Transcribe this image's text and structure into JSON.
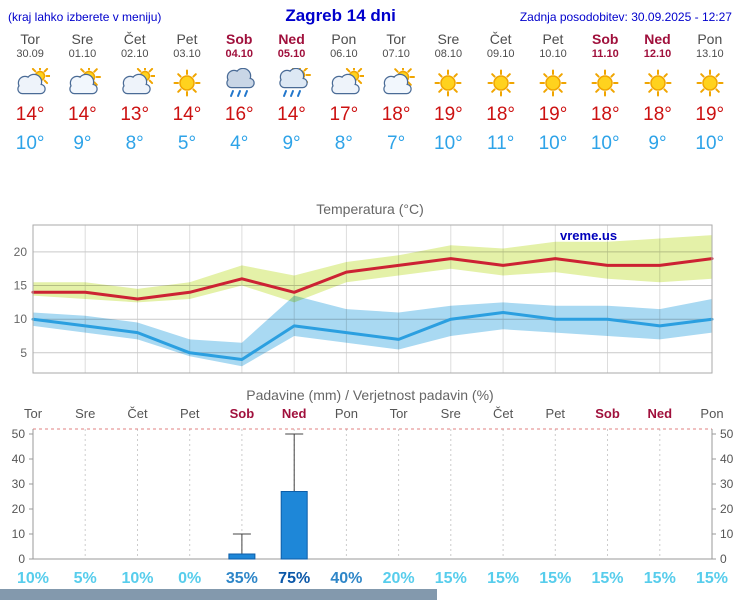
{
  "header": {
    "left": "(kraj lahko izberete v meniju)",
    "title": "Zagreb 14 dni",
    "updated": "Zadnja posodobitev: 30.09.2025 - 12:27"
  },
  "days": [
    {
      "name": "Tor",
      "date": "30.09",
      "weekend": false,
      "icon": "mostly-cloudy",
      "tmax": "14°",
      "tmin": "10°"
    },
    {
      "name": "Sre",
      "date": "01.10",
      "weekend": false,
      "icon": "partly-sunny",
      "tmax": "14°",
      "tmin": "9°"
    },
    {
      "name": "Čet",
      "date": "02.10",
      "weekend": false,
      "icon": "mostly-cloudy",
      "tmax": "13°",
      "tmin": "8°"
    },
    {
      "name": "Pet",
      "date": "03.10",
      "weekend": false,
      "icon": "sunny",
      "tmax": "14°",
      "tmin": "5°"
    },
    {
      "name": "Sob",
      "date": "04.10",
      "weekend": true,
      "icon": "rain",
      "tmax": "16°",
      "tmin": "4°"
    },
    {
      "name": "Ned",
      "date": "05.10",
      "weekend": true,
      "icon": "sun-shower",
      "tmax": "14°",
      "tmin": "9°"
    },
    {
      "name": "Pon",
      "date": "06.10",
      "weekend": false,
      "icon": "mostly-cloudy",
      "tmax": "17°",
      "tmin": "8°"
    },
    {
      "name": "Tor",
      "date": "07.10",
      "weekend": false,
      "icon": "partly-sunny",
      "tmax": "18°",
      "tmin": "7°"
    },
    {
      "name": "Sre",
      "date": "08.10",
      "weekend": false,
      "icon": "sunny",
      "tmax": "19°",
      "tmin": "10°"
    },
    {
      "name": "Čet",
      "date": "09.10",
      "weekend": false,
      "icon": "sunny",
      "tmax": "18°",
      "tmin": "11°"
    },
    {
      "name": "Pet",
      "date": "10.10",
      "weekend": false,
      "icon": "sunny",
      "tmax": "19°",
      "tmin": "10°"
    },
    {
      "name": "Sob",
      "date": "11.10",
      "weekend": true,
      "icon": "sunny",
      "tmax": "18°",
      "tmin": "10°"
    },
    {
      "name": "Ned",
      "date": "12.10",
      "weekend": true,
      "icon": "sunny",
      "tmax": "18°",
      "tmin": "9°"
    },
    {
      "name": "Pon",
      "date": "13.10",
      "weekend": false,
      "icon": "sunny",
      "tmax": "19°",
      "tmin": "10°"
    }
  ],
  "colors": {
    "accent_blue": "#0000bb",
    "weekend_red": "#a0103c",
    "tmax_red": "#cc1111",
    "tmin_blue": "#2ea3e8",
    "bar_blue": "#1e87d8",
    "bar_border": "#0d5ea8",
    "prob_low": "#57cdec",
    "prob_mid": "#2e86c8",
    "prob_high": "#0b57a8",
    "grid_gray": "#c9c9c9",
    "label_gray": "#555555"
  },
  "chart_data": [
    {
      "type": "line",
      "title": "Temperatura (°C)",
      "watermark": "vreme.us",
      "x": [
        "Tor",
        "Sre",
        "Čet",
        "Pet",
        "Sob",
        "Ned",
        "Pon",
        "Tor",
        "Sre",
        "Čet",
        "Pet",
        "Sob",
        "Ned",
        "Pon"
      ],
      "ylim": [
        2,
        24
      ],
      "yticks": [
        5,
        10,
        15,
        20
      ],
      "grid": true,
      "series": [
        {
          "name": "max temperature",
          "color": "#cc2233",
          "values": [
            14,
            14,
            13,
            14,
            16,
            14,
            17,
            18,
            19,
            18,
            19,
            18,
            18,
            19
          ]
        },
        {
          "name": "min temperature",
          "color": "#2b9fe0",
          "values": [
            10,
            9,
            8,
            5,
            4,
            9,
            8,
            7,
            10,
            11,
            10,
            10,
            9,
            10
          ]
        }
      ],
      "bands": [
        {
          "name": "max range",
          "color": "#e4f1a8",
          "upper": [
            15.5,
            15.5,
            14.5,
            15.5,
            18,
            16.5,
            18.5,
            19.5,
            21,
            20.5,
            21.5,
            21.5,
            22,
            22.5
          ],
          "lower": [
            13.5,
            13,
            12.5,
            13,
            15,
            12.5,
            15.5,
            16.5,
            17.5,
            16.5,
            17,
            16,
            15.5,
            16
          ]
        },
        {
          "name": "min range",
          "color": "#a9d9f2",
          "upper": [
            11,
            10.5,
            9.5,
            7,
            6.5,
            13.5,
            11.5,
            11,
            12,
            12.5,
            12,
            12,
            11.5,
            13
          ],
          "lower": [
            9,
            8,
            7,
            4.5,
            3,
            7.5,
            6.5,
            5.5,
            7.5,
            8.5,
            8,
            7.5,
            7,
            8
          ]
        }
      ]
    },
    {
      "type": "bar",
      "title": "Padavine (mm) / Verjetnost padavin (%)",
      "categories": [
        "Tor",
        "Sre",
        "Čet",
        "Pet",
        "Sob",
        "Ned",
        "Pon",
        "Tor",
        "Sre",
        "Čet",
        "Pet",
        "Sob",
        "Ned",
        "Pon"
      ],
      "weekend": [
        false,
        false,
        false,
        false,
        true,
        true,
        false,
        false,
        false,
        false,
        false,
        true,
        true,
        false
      ],
      "values_mm": [
        0,
        0,
        0,
        0,
        2,
        27,
        0,
        0,
        0,
        0,
        0,
        0,
        0,
        0
      ],
      "whisker_max_mm": [
        0,
        0,
        0,
        0,
        10,
        50,
        0,
        0,
        0,
        0,
        0,
        0,
        0,
        0
      ],
      "probabilities_pct": [
        10,
        5,
        10,
        0,
        35,
        75,
        40,
        20,
        15,
        15,
        15,
        15,
        15,
        15
      ],
      "ylim": [
        0,
        52
      ],
      "yticks": [
        0,
        10,
        20,
        30,
        40,
        50
      ],
      "legend_position": "none"
    }
  ]
}
